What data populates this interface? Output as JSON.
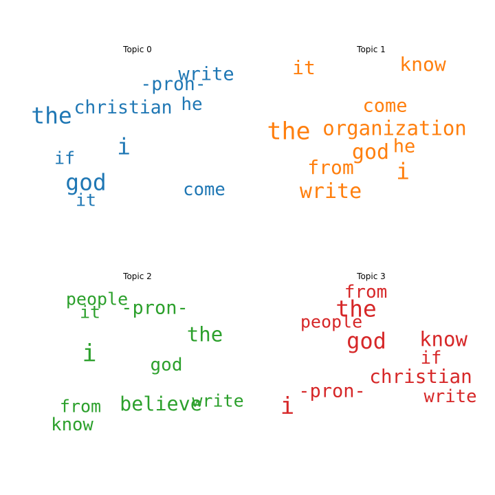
{
  "chart_data": {
    "type": "wordcloud",
    "topics": [
      {
        "title": "Topic 0",
        "color": "#1f77b4",
        "words": [
          {
            "text": "write",
            "weight": 0.55
          },
          {
            "text": "-pron-",
            "weight": 0.52
          },
          {
            "text": "christian",
            "weight": 0.52
          },
          {
            "text": "he",
            "weight": 0.5
          },
          {
            "text": "the",
            "weight": 0.85
          },
          {
            "text": "i",
            "weight": 0.85
          },
          {
            "text": "if",
            "weight": 0.45
          },
          {
            "text": "god",
            "weight": 0.85
          },
          {
            "text": "come",
            "weight": 0.48
          },
          {
            "text": "it",
            "weight": 0.45
          }
        ]
      },
      {
        "title": "Topic 1",
        "color": "#ff7f0e",
        "words": [
          {
            "text": "it",
            "weight": 0.6
          },
          {
            "text": "know",
            "weight": 0.6
          },
          {
            "text": "come",
            "weight": 0.55
          },
          {
            "text": "the",
            "weight": 0.95
          },
          {
            "text": "organization",
            "weight": 0.65
          },
          {
            "text": "god",
            "weight": 0.7
          },
          {
            "text": "he",
            "weight": 0.55
          },
          {
            "text": "from",
            "weight": 0.6
          },
          {
            "text": "i",
            "weight": 0.85
          },
          {
            "text": "write",
            "weight": 0.7
          }
        ]
      },
      {
        "title": "Topic 2",
        "color": "#2ca02c",
        "words": [
          {
            "text": "people",
            "weight": 0.45
          },
          {
            "text": "it",
            "weight": 0.45
          },
          {
            "text": "-pron-",
            "weight": 0.55
          },
          {
            "text": "the",
            "weight": 0.65
          },
          {
            "text": "i",
            "weight": 0.95
          },
          {
            "text": "god",
            "weight": 0.5
          },
          {
            "text": "believe",
            "weight": 0.62
          },
          {
            "text": "write",
            "weight": 0.45
          },
          {
            "text": "from",
            "weight": 0.45
          },
          {
            "text": "know",
            "weight": 0.48
          }
        ]
      },
      {
        "title": "Topic 3",
        "color": "#d62728",
        "words": [
          {
            "text": "from",
            "weight": 0.5
          },
          {
            "text": "the",
            "weight": 0.85
          },
          {
            "text": "people",
            "weight": 0.45
          },
          {
            "text": "god",
            "weight": 0.8
          },
          {
            "text": "know",
            "weight": 0.65
          },
          {
            "text": "if",
            "weight": 0.48
          },
          {
            "text": "christian",
            "weight": 0.58
          },
          {
            "text": "-pron-",
            "weight": 0.55
          },
          {
            "text": "write",
            "weight": 0.48
          },
          {
            "text": "i",
            "weight": 0.9
          }
        ]
      }
    ]
  }
}
